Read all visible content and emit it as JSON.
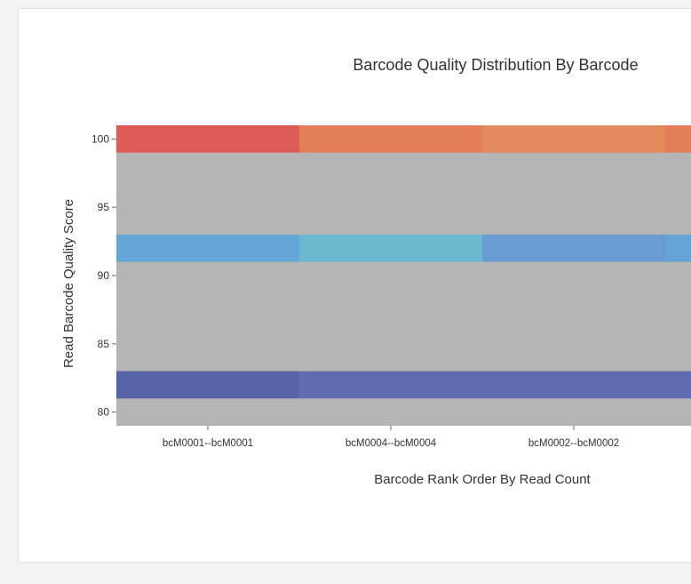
{
  "chart_data": {
    "type": "heatmap",
    "title": "Barcode Quality Distribution By Barcode",
    "xlabel": "Barcode Rank Order By Read Count",
    "ylabel": "Read Barcode Quality Score",
    "y_ticks": [
      80,
      85,
      90,
      95,
      100
    ],
    "ylim": [
      79,
      101
    ],
    "categories": [
      "bcM0001--bcM0001",
      "bcM0004--bcM0004",
      "bcM0002--bcM0002",
      ""
    ],
    "background_color": "#b5b5b5",
    "bands": [
      {
        "score": 100,
        "colors": [
          "#de5c58",
          "#e37d5a",
          "#e38a5d",
          "#e37d5a"
        ]
      },
      {
        "score": 92,
        "colors": [
          "#64a6d6",
          "#6bb9d0",
          "#6a9bd3",
          "#64a3d4"
        ]
      },
      {
        "score": 82,
        "colors": [
          "#5864aa",
          "#5f6cb0",
          "#5f6cb0",
          "#5f6cb0"
        ]
      }
    ]
  }
}
